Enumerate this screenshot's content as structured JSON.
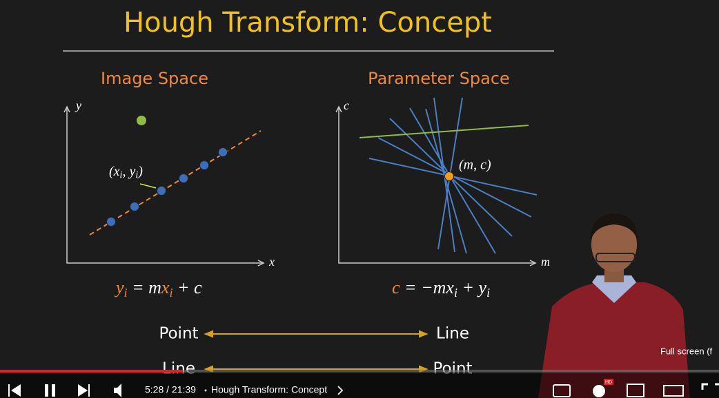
{
  "slide": {
    "title": "Hough Transform: Concept",
    "left_heading": "Image Space",
    "right_heading": "Parameter Space",
    "left_axes": {
      "x": "x",
      "y": "y"
    },
    "right_axes": {
      "x": "m",
      "y": "c"
    },
    "point_label": [
      "(x",
      "i",
      ", y",
      "i",
      ")"
    ],
    "intersection_label": "(m, c)",
    "eq_left": [
      "y",
      "i",
      " = m",
      "x",
      "i",
      " + c"
    ],
    "eq_right": [
      "c",
      " = −m",
      "x",
      "i",
      " + y",
      "i"
    ],
    "mapping": [
      {
        "left": "Point",
        "right": "Line"
      },
      {
        "left": "Line",
        "right": "Point"
      }
    ]
  },
  "player": {
    "time": "5:28 / 21:39",
    "chapter": "Hough Transform: Concept",
    "tooltip": "Full screen (f",
    "quality_badge": "HD"
  }
}
